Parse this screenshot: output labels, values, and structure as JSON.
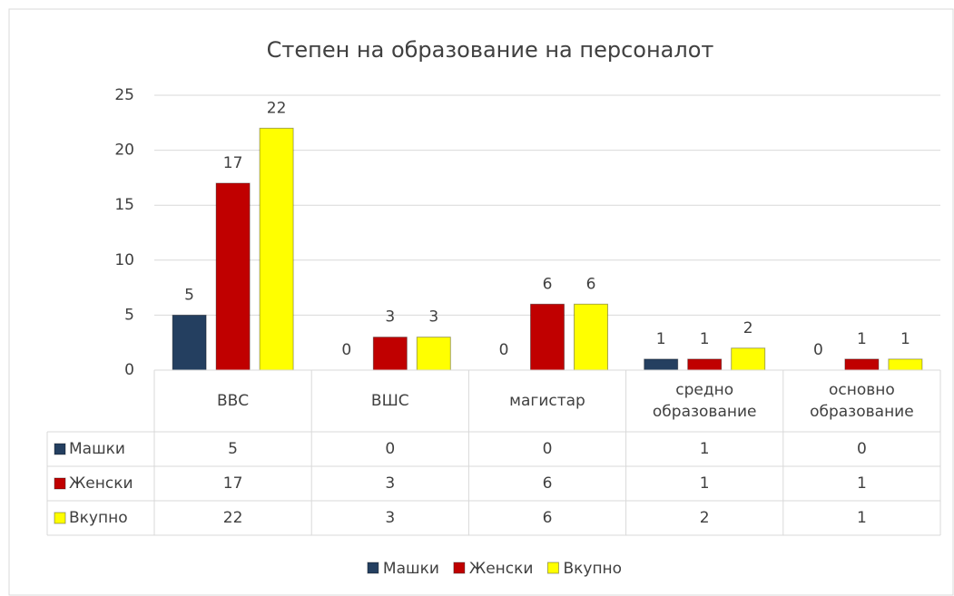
{
  "chart_data": {
    "type": "bar",
    "title": "Степен на образование на персоналот",
    "categories": [
      "ВВС",
      "ВШС",
      "магистар",
      "средно образование",
      "основно образование"
    ],
    "series": [
      {
        "name": "Машки",
        "color": "#243f60",
        "values": [
          5,
          0,
          0,
          1,
          0
        ]
      },
      {
        "name": "Женски",
        "color": "#c00000",
        "values": [
          17,
          3,
          6,
          1,
          1
        ]
      },
      {
        "name": "Вкупно",
        "color": "#ffff00",
        "values": [
          22,
          3,
          6,
          2,
          1
        ]
      }
    ],
    "ylim": [
      0,
      25
    ],
    "yticks": [
      0,
      5,
      10,
      15,
      20,
      25
    ],
    "grid": true,
    "legend": "bottom",
    "data_table": true
  }
}
